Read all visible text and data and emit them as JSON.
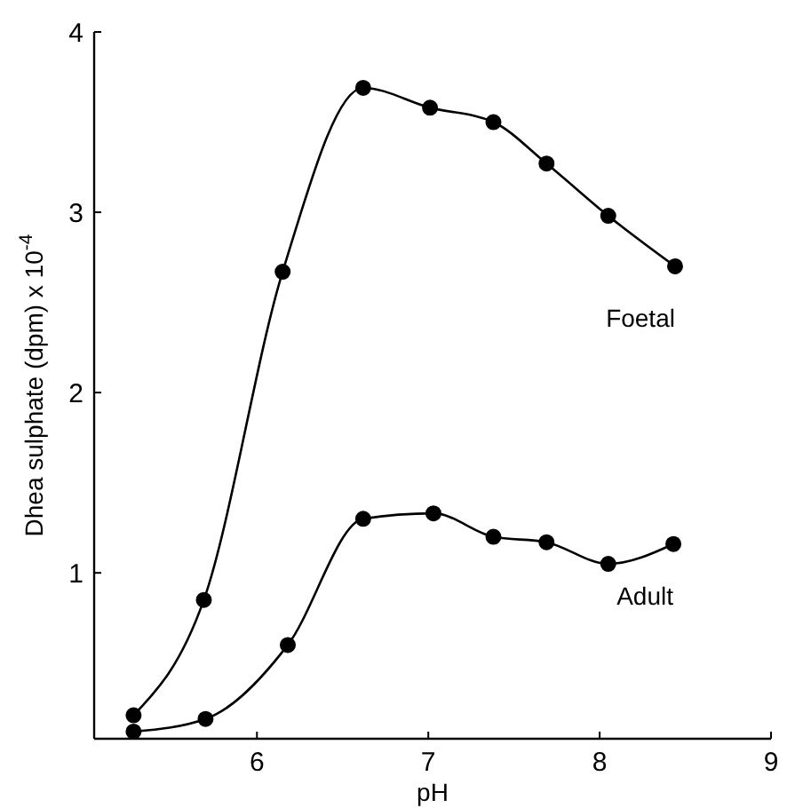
{
  "chart_data": {
    "type": "line",
    "xlabel": "pH",
    "ylabel": "Dhea sulphate  (dpm) x 10$^{-4}$",
    "xlim": [
      5.05,
      9
    ],
    "ylim": [
      0.08,
      4
    ],
    "xticks": [
      6,
      7,
      8,
      9
    ],
    "yticks": [
      1,
      2,
      3,
      4
    ],
    "marker": "circle",
    "grid": false,
    "series": [
      {
        "name": "Foetal",
        "color": "#000000",
        "x": [
          5.28,
          5.69,
          6.15,
          6.62,
          7.01,
          7.38,
          7.69,
          8.05,
          8.44
        ],
        "values": [
          0.21,
          0.85,
          2.67,
          3.69,
          3.58,
          3.5,
          3.27,
          2.98,
          2.7
        ]
      },
      {
        "name": "Adult",
        "color": "#000000",
        "x": [
          5.28,
          5.7,
          6.18,
          6.62,
          7.03,
          7.38,
          7.69,
          8.05,
          8.43
        ],
        "values": [
          0.12,
          0.19,
          0.6,
          1.3,
          1.33,
          1.2,
          1.17,
          1.05,
          1.16
        ]
      }
    ]
  }
}
